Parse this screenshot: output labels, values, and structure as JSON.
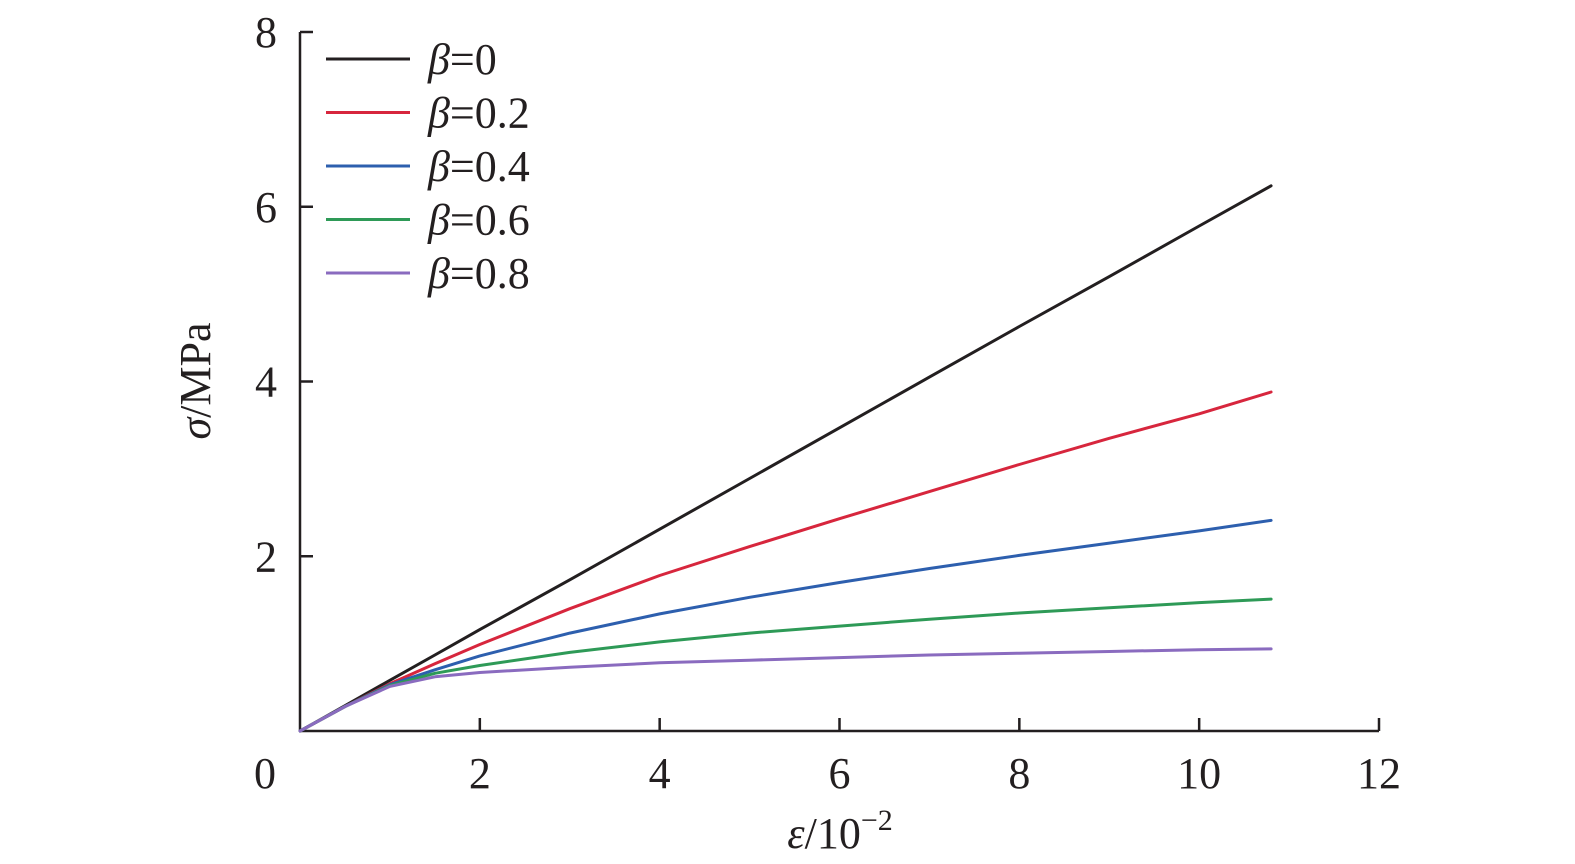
{
  "chart_data": {
    "type": "line",
    "xlabel": {
      "symbol": "ε",
      "rest": "/10",
      "sup": "−2"
    },
    "ylabel": {
      "symbol": "σ",
      "rest": "/MPa"
    },
    "xlim": [
      0,
      12
    ],
    "ylim": [
      0,
      8
    ],
    "xticks": [
      {
        "value": 0,
        "label": "0"
      },
      {
        "value": 2,
        "label": "2"
      },
      {
        "value": 4,
        "label": "4"
      },
      {
        "value": 6,
        "label": "6"
      },
      {
        "value": 8,
        "label": "8"
      },
      {
        "value": 10,
        "label": "10"
      },
      {
        "value": 12,
        "label": "12"
      }
    ],
    "yticks": [
      {
        "value": 2,
        "label": "2"
      },
      {
        "value": 4,
        "label": "4"
      },
      {
        "value": 6,
        "label": "6"
      },
      {
        "value": 8,
        "label": "8"
      }
    ],
    "grid": false,
    "legend_position": "top-left",
    "series": [
      {
        "name": "β=0",
        "legend_symbol": "β",
        "legend_value": "=0",
        "color": "#231f20",
        "x": [
          0,
          0.5,
          1.0,
          1.5,
          2,
          3,
          4,
          5,
          6,
          7,
          8,
          9,
          10,
          10.8
        ],
        "y": [
          0,
          0.29,
          0.58,
          0.87,
          1.16,
          1.73,
          2.31,
          2.89,
          3.47,
          4.05,
          4.63,
          5.2,
          5.78,
          6.24
        ]
      },
      {
        "name": "β=0.2",
        "legend_symbol": "β",
        "legend_value": "=0.2",
        "color": "#d7263d",
        "x": [
          0,
          0.5,
          1.0,
          1.5,
          2,
          3,
          4,
          5,
          6,
          7,
          8,
          9,
          10,
          10.8
        ],
        "y": [
          0,
          0.28,
          0.54,
          0.77,
          0.99,
          1.4,
          1.78,
          2.11,
          2.43,
          2.74,
          3.05,
          3.35,
          3.63,
          3.88
        ]
      },
      {
        "name": "β=0.4",
        "legend_symbol": "β",
        "legend_value": "=0.4",
        "color": "#2d5fae",
        "x": [
          0,
          0.5,
          1.0,
          1.5,
          2,
          3,
          4,
          5,
          6,
          7,
          8,
          9,
          10,
          10.8
        ],
        "y": [
          0,
          0.28,
          0.53,
          0.7,
          0.86,
          1.12,
          1.34,
          1.53,
          1.7,
          1.86,
          2.01,
          2.15,
          2.29,
          2.41
        ]
      },
      {
        "name": "β=0.6",
        "legend_symbol": "β",
        "legend_value": "=0.6",
        "color": "#2e9a57",
        "x": [
          0,
          0.5,
          1.0,
          1.5,
          2,
          3,
          4,
          5,
          6,
          7,
          8,
          9,
          10,
          10.8
        ],
        "y": [
          0,
          0.28,
          0.52,
          0.66,
          0.75,
          0.9,
          1.02,
          1.12,
          1.2,
          1.28,
          1.35,
          1.41,
          1.47,
          1.51
        ]
      },
      {
        "name": "β=0.8",
        "legend_symbol": "β",
        "legend_value": "=0.8",
        "color": "#8a6bbf",
        "x": [
          0,
          0.5,
          1.0,
          1.5,
          2,
          3,
          4,
          5,
          6,
          7,
          8,
          9,
          10,
          10.8
        ],
        "y": [
          0,
          0.28,
          0.51,
          0.62,
          0.67,
          0.73,
          0.78,
          0.81,
          0.84,
          0.87,
          0.89,
          0.91,
          0.93,
          0.94
        ]
      }
    ]
  }
}
